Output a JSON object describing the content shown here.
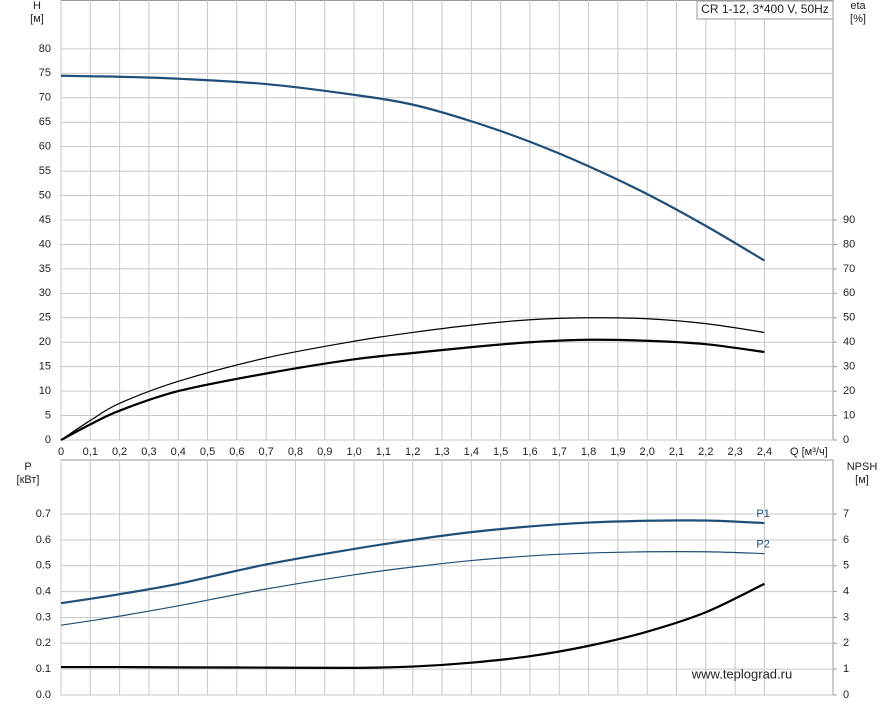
{
  "chart_data": [
    {
      "type": "line",
      "title": "CR 1-12, 3*400 V, 50Hz",
      "ylabel": "H",
      "yunit": "[м]",
      "y2label": "eta",
      "y2unit": "[%]",
      "xlabel": "Q [м³/ч]",
      "x": [
        0,
        0.1,
        0.2,
        0.4,
        0.7,
        1.0,
        1.2,
        1.4,
        1.6,
        1.8,
        2.0,
        2.2,
        2.4
      ],
      "series": [
        {
          "color": "#1f4e79",
          "width": 2.2,
          "values": [
            74.5,
            74.4,
            74.3,
            73.9,
            72.8,
            70.6,
            68.6,
            65.2,
            61,
            56,
            50.3,
            43.8,
            36.7
          ]
        },
        {
          "color": "#000000",
          "width": 1.2,
          "axis": "y2",
          "values": [
            0,
            8,
            15,
            24,
            33.6,
            40.4,
            44,
            47,
            49.2,
            50,
            49.6,
            47.6,
            44
          ]
        },
        {
          "color": "#000000",
          "width": 2.2,
          "axis": "y2",
          "values": [
            0,
            6.4,
            12,
            20,
            27.2,
            33,
            35.6,
            38,
            40,
            41,
            40.6,
            39.2,
            36
          ]
        }
      ],
      "xlim": [
        0,
        2.634
      ],
      "xticks": [
        0,
        {
          "value": 0.1,
          "label": "0,1"
        },
        {
          "value": 0.2,
          "label": "0,2"
        },
        {
          "value": 0.3,
          "label": "0,3"
        },
        {
          "value": 0.4,
          "label": "0,4"
        },
        {
          "value": 0.5,
          "label": "0,5"
        },
        {
          "value": 0.6,
          "label": "0,6"
        },
        {
          "value": 0.7,
          "label": "0,7"
        },
        {
          "value": 0.8,
          "label": "0,8"
        },
        {
          "value": 0.9,
          "label": "0,9"
        },
        {
          "value": 1.0,
          "label": "1,0"
        },
        {
          "value": 1.1,
          "label": "1,1"
        },
        {
          "value": 1.2,
          "label": "1,2"
        },
        {
          "value": 1.3,
          "label": "1,3"
        },
        {
          "value": 1.4,
          "label": "1,4"
        },
        {
          "value": 1.5,
          "label": "1,5"
        },
        {
          "value": 1.6,
          "label": "1,6"
        },
        {
          "value": 1.7,
          "label": "1,7"
        },
        {
          "value": 1.8,
          "label": "1,8"
        },
        {
          "value": 1.9,
          "label": "1,9"
        },
        {
          "value": 2.0,
          "label": "2,0"
        },
        {
          "value": 2.1,
          "label": "2,1"
        },
        {
          "value": 2.2,
          "label": "2,2"
        },
        {
          "value": 2.3,
          "label": "2,3"
        },
        {
          "value": 2.4,
          "label": "2,4"
        }
      ],
      "ylim": [
        0,
        90
      ],
      "yticks": [
        0,
        5,
        10,
        15,
        20,
        25,
        30,
        35,
        40,
        45,
        50,
        55,
        60,
        65,
        70,
        75,
        80
      ],
      "y2lim": [
        0,
        180
      ],
      "y2ticks": [
        0,
        10,
        20,
        30,
        40,
        50,
        60,
        70,
        80,
        90
      ],
      "grid": true
    },
    {
      "type": "line",
      "ylabel": "P",
      "yunit": "[кВт]",
      "y2label": "NPSH",
      "y2unit": "[м]",
      "annotation": "www.teplograd.ru",
      "x": [
        0,
        0.1,
        0.2,
        0.4,
        0.7,
        1.0,
        1.2,
        1.4,
        1.6,
        1.8,
        2.0,
        2.2,
        2.4
      ],
      "series": [
        {
          "name": "P1",
          "color": "#1f4e79",
          "width": 2.2,
          "values": [
            0.355,
            0.372,
            0.39,
            0.43,
            0.505,
            0.565,
            0.6,
            0.63,
            0.652,
            0.667,
            0.674,
            0.675,
            0.665
          ]
        },
        {
          "name": "P2",
          "color": "#1f4e79",
          "width": 1.2,
          "values": [
            0.27,
            0.287,
            0.305,
            0.345,
            0.41,
            0.465,
            0.495,
            0.52,
            0.538,
            0.549,
            0.554,
            0.554,
            0.547
          ]
        },
        {
          "color": "#000000",
          "width": 2.2,
          "axis": "y2",
          "values": [
            1.08,
            1.08,
            1.08,
            1.07,
            1.06,
            1.05,
            1.1,
            1.25,
            1.5,
            1.9,
            2.45,
            3.2,
            4.3
          ]
        }
      ],
      "xlim": [
        0,
        2.634
      ],
      "ylim": [
        0,
        0.909
      ],
      "yticks": [
        {
          "value": 0,
          "label": "0.0"
        },
        0.1,
        0.2,
        0.3,
        0.4,
        0.5,
        0.6,
        0.7
      ],
      "y2lim": [
        0,
        9.09
      ],
      "y2ticks": [
        0,
        1,
        2,
        3,
        4,
        5,
        6,
        7
      ],
      "grid": true
    }
  ]
}
